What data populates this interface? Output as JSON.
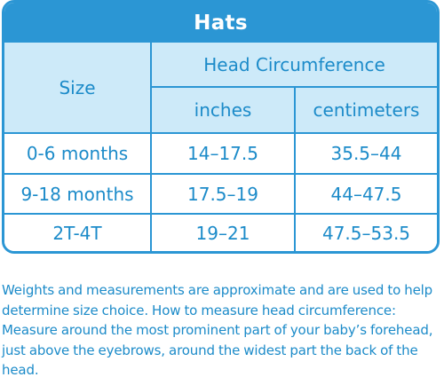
{
  "table": {
    "title": "Hats",
    "size_header": "Size",
    "group_header": "Head Circumference",
    "unit_headers": [
      "inches",
      "centimeters"
    ],
    "rows": [
      {
        "size": "0-6 months",
        "inches": "14–17.5",
        "centimeters": "35.5–44"
      },
      {
        "size": "9-18 months",
        "inches": "17.5–19",
        "centimeters": "44–47.5"
      },
      {
        "size": "2T-4T",
        "inches": "19–21",
        "centimeters": "47.5–53.5"
      }
    ]
  },
  "note": "Weights and measurements are approximate and are used to help determine size choice. How to measure head circumference: Measure around the most prominent part of your baby’s forehead, just above the eyebrows, around the widest part the back of the head.",
  "colors": {
    "border": "#2b96d4",
    "header_fill": "#cdeaf9",
    "text": "#1c8bc9"
  }
}
